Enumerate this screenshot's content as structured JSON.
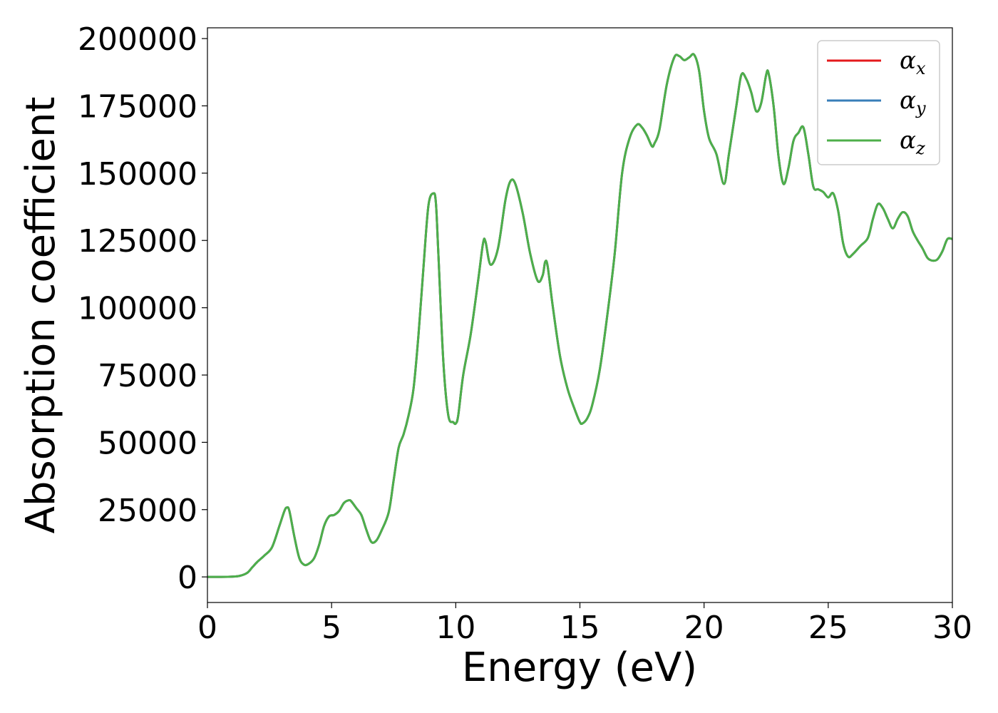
{
  "chart_data": {
    "type": "line",
    "title": "",
    "xlabel": "Energy (eV)",
    "ylabel": "Absorption coefficient",
    "xlim": [
      0,
      30
    ],
    "ylim": [
      -9500,
      204000
    ],
    "xticks": [
      0,
      5,
      10,
      15,
      20,
      25,
      30
    ],
    "yticks": [
      0,
      25000,
      50000,
      75000,
      100000,
      125000,
      150000,
      175000,
      200000
    ],
    "grid": false,
    "legend_position": "top-right",
    "colors": {
      "x": "#e41a1c",
      "y": "#377eb8",
      "z": "#4daf4a"
    },
    "series": [
      {
        "name": "α",
        "subscript": "x",
        "color": "#e41a1c"
      },
      {
        "name": "α",
        "subscript": "y",
        "color": "#377eb8"
      },
      {
        "name": "α",
        "subscript": "z",
        "color": "#4daf4a"
      }
    ],
    "x": [
      0,
      0.5,
      1.0,
      1.3,
      1.6,
      1.8,
      2.0,
      2.3,
      2.6,
      2.9,
      3.1,
      3.2,
      3.3,
      3.5,
      3.7,
      3.9,
      4.1,
      4.3,
      4.5,
      4.7,
      4.9,
      5.1,
      5.3,
      5.5,
      5.7,
      5.8,
      6.0,
      6.2,
      6.4,
      6.6,
      6.8,
      7.0,
      7.3,
      7.5,
      7.7,
      7.9,
      8.1,
      8.3,
      8.5,
      8.7,
      8.9,
      9.1,
      9.2,
      9.3,
      9.5,
      9.7,
      9.9,
      10.0,
      10.1,
      10.3,
      10.6,
      10.9,
      11.1,
      11.2,
      11.4,
      11.7,
      12.0,
      12.2,
      12.4,
      12.7,
      13.0,
      13.3,
      13.5,
      13.6,
      13.7,
      13.9,
      14.2,
      14.5,
      14.8,
      15.0,
      15.1,
      15.3,
      15.5,
      15.8,
      16.1,
      16.4,
      16.7,
      17.0,
      17.3,
      17.5,
      17.7,
      17.9,
      18.0,
      18.2,
      18.5,
      18.8,
      19.0,
      19.2,
      19.4,
      19.6,
      19.8,
      20.0,
      20.2,
      20.5,
      20.8,
      21.0,
      21.3,
      21.5,
      21.7,
      21.9,
      22.1,
      22.3,
      22.5,
      22.6,
      22.8,
      23.0,
      23.2,
      23.4,
      23.6,
      23.8,
      24.0,
      24.2,
      24.4,
      24.6,
      24.8,
      25.0,
      25.2,
      25.4,
      25.6,
      25.8,
      26.0,
      26.3,
      26.6,
      26.8,
      27.0,
      27.2,
      27.4,
      27.6,
      27.8,
      28.0,
      28.2,
      28.4,
      28.6,
      28.8,
      29.0,
      29.2,
      29.4,
      29.6,
      29.8,
      30.0
    ],
    "values_z": [
      0,
      0,
      100,
      400,
      1500,
      3500,
      5500,
      8000,
      11000,
      19000,
      24500,
      25800,
      24500,
      15000,
      7000,
      4500,
      5000,
      7000,
      12000,
      19000,
      22500,
      23000,
      24500,
      27500,
      28500,
      28000,
      25500,
      23000,
      17500,
      13000,
      13500,
      17000,
      24000,
      36000,
      48000,
      53000,
      60000,
      70000,
      90000,
      115000,
      138000,
      142500,
      139000,
      120000,
      80000,
      60000,
      57500,
      57000,
      60000,
      75000,
      90000,
      110000,
      124000,
      124500,
      116000,
      122000,
      140000,
      147000,
      146000,
      135000,
      120000,
      110000,
      112000,
      117000,
      115500,
      101000,
      82000,
      70000,
      62000,
      57500,
      57000,
      59000,
      64000,
      77000,
      97000,
      120000,
      150000,
      163000,
      168000,
      167000,
      164000,
      160000,
      161000,
      166000,
      183000,
      193000,
      193500,
      192000,
      193000,
      194000,
      188000,
      173000,
      163000,
      157000,
      146000,
      157000,
      175000,
      186500,
      185000,
      180000,
      173000,
      176000,
      186500,
      187000,
      175000,
      156000,
      146000,
      152000,
      162000,
      165000,
      167000,
      157000,
      145000,
      144000,
      143000,
      141000,
      142500,
      136000,
      124000,
      119000,
      120000,
      123000,
      126000,
      133000,
      138500,
      137000,
      133000,
      129500,
      133000,
      135500,
      134000,
      128500,
      125000,
      122000,
      118500,
      117500,
      118000,
      121000,
      125500,
      125500
    ]
  }
}
